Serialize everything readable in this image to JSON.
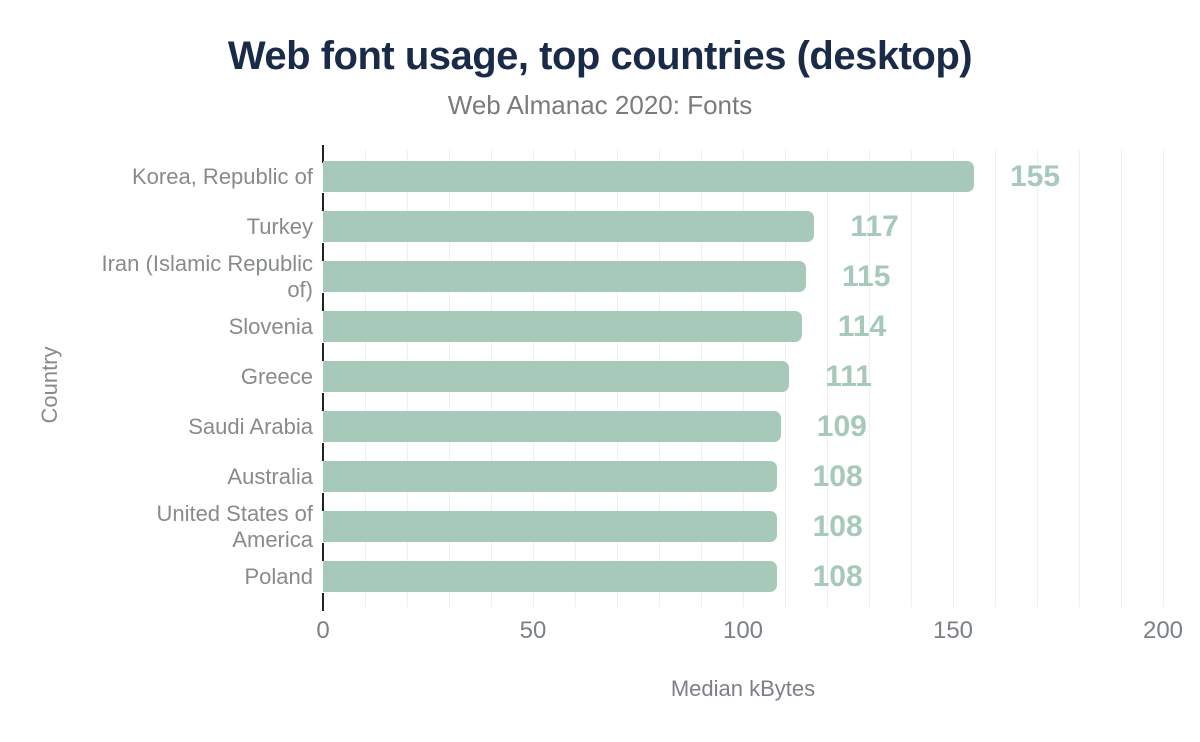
{
  "chart_data": {
    "type": "bar",
    "orientation": "horizontal",
    "title": "Web font usage, top countries (desktop)",
    "subtitle": "Web Almanac 2020: Fonts",
    "xlabel": "Median kBytes",
    "ylabel": "Country",
    "categories": [
      "Korea, Republic of",
      "Turkey",
      "Iran (Islamic Republic of)",
      "Slovenia",
      "Greece",
      "Saudi Arabia",
      "Australia",
      "United States of America",
      "Poland"
    ],
    "values": [
      155,
      117,
      115,
      114,
      111,
      109,
      108,
      108,
      108
    ],
    "data_labels": [
      "155",
      "117",
      "115",
      "114",
      "111",
      "109",
      "108",
      "108",
      "108"
    ],
    "xlim": [
      0,
      200
    ],
    "xticks": [
      0,
      50,
      100,
      150,
      200
    ],
    "xtick_labels": [
      "0",
      "50",
      "100",
      "150",
      "200"
    ],
    "grid": "vertical, minor every 10 units",
    "legend": "none",
    "colors": {
      "bar": "#a6c9b9",
      "value_label": "#a6c9b9",
      "title": "#1a2b49",
      "subtitle": "#7b7b7b",
      "category_label": "#878b8e",
      "axis_tick_label": "#7b8087",
      "gridline": "#efefef",
      "axis_tick_mark": "#222222",
      "background": "#ffffff"
    }
  }
}
